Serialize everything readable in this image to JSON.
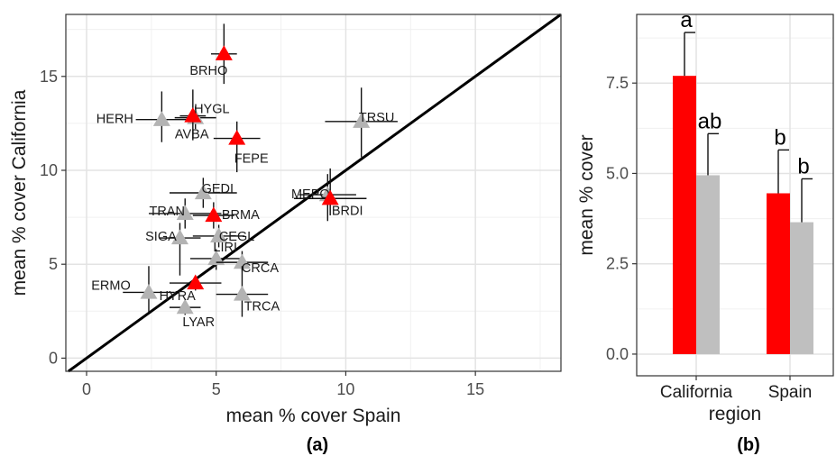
{
  "chart_data": [
    {
      "type": "scatter",
      "panel_label": "(a)",
      "xlabel": "mean % cover Spain",
      "ylabel": "mean % cover California",
      "xlim": [
        -0.8,
        18.3
      ],
      "ylim": [
        -0.7,
        18.3
      ],
      "x_ticks": [
        0,
        5,
        10,
        15
      ],
      "y_ticks": [
        0,
        5,
        10,
        15
      ],
      "grid": true,
      "reference_line": "y = x",
      "colors": {
        "red": "#ff0000",
        "grey": "#b3b3b3",
        "line": "#000000"
      },
      "points": [
        {
          "label": "BRHO",
          "x": 5.3,
          "y": 16.2,
          "xerr": 0.5,
          "yerr": [
            1.6,
            1.6
          ],
          "color": "red"
        },
        {
          "label": "HERH",
          "x": 2.9,
          "y": 12.7,
          "xerr": 1.0,
          "yerr": [
            1.2,
            1.5
          ],
          "color": "grey"
        },
        {
          "label": "HYGL",
          "x": 4.1,
          "y": 12.9,
          "xerr": 0.5,
          "yerr": [
            1.3,
            1.4
          ],
          "color": "red"
        },
        {
          "label": "AVBA",
          "x": 4.2,
          "y": 12.8,
          "xerr": 0.8,
          "yerr": [
            0.6,
            0.6
          ],
          "color": "grey"
        },
        {
          "label": "FEPE",
          "x": 5.8,
          "y": 11.7,
          "xerr": 0.9,
          "yerr": [
            1.8,
            0.9
          ],
          "color": "red"
        },
        {
          "label": "TRSU",
          "x": 10.6,
          "y": 12.6,
          "xerr": 1.4,
          "yerr": [
            1.9,
            1.8
          ],
          "color": "grey"
        },
        {
          "label": "MEPO",
          "x": 9.3,
          "y": 8.7,
          "xerr": 1.1,
          "yerr": [
            1.4,
            1.1
          ],
          "color": "grey"
        },
        {
          "label": "BRDI",
          "x": 9.4,
          "y": 8.5,
          "xerr": 1.4,
          "yerr": [
            0.9,
            1.6
          ],
          "color": "red"
        },
        {
          "label": "GEDI",
          "x": 4.5,
          "y": 8.8,
          "xerr": 1.3,
          "yerr": [
            0.8,
            0.8
          ],
          "color": "grey"
        },
        {
          "label": "TRAN",
          "x": 3.8,
          "y": 7.7,
          "xerr": 1.4,
          "yerr": [
            0.8,
            0.8
          ],
          "color": "grey"
        },
        {
          "label": "BRMA",
          "x": 4.9,
          "y": 7.6,
          "xerr": 0.8,
          "yerr": [
            0.7,
            0.7
          ],
          "color": "red"
        },
        {
          "label": "SIGA",
          "x": 3.6,
          "y": 6.4,
          "xerr": 0.8,
          "yerr": [
            2.0,
            0.8
          ],
          "color": "grey"
        },
        {
          "label": "CEGL",
          "x": 5.1,
          "y": 6.5,
          "xerr": 1.0,
          "yerr": [
            0.6,
            0.6
          ],
          "color": "grey"
        },
        {
          "label": "LIRI",
          "x": 5.0,
          "y": 5.3,
          "xerr": 1.0,
          "yerr": [
            0.6,
            0.5
          ],
          "color": "grey"
        },
        {
          "label": "CRCA",
          "x": 6.0,
          "y": 5.1,
          "xerr": 1.0,
          "yerr": [
            0.4,
            0.6
          ],
          "color": "grey"
        },
        {
          "label": "HYRA",
          "x": 4.2,
          "y": 4.0,
          "xerr": 1.0,
          "yerr": [
            0.4,
            0.4
          ],
          "color": "red"
        },
        {
          "label": "ERMO",
          "x": 2.4,
          "y": 3.5,
          "xerr": 1.0,
          "yerr": [
            1.1,
            1.4
          ],
          "color": "grey"
        },
        {
          "label": "TRCA",
          "x": 6.0,
          "y": 3.4,
          "xerr": 1.0,
          "yerr": [
            1.2,
            1.5
          ],
          "color": "grey"
        },
        {
          "label": "LYAR",
          "x": 3.8,
          "y": 2.7,
          "xerr": 0.6,
          "yerr": [
            0.4,
            0.4
          ],
          "color": "grey"
        }
      ]
    },
    {
      "type": "bar",
      "panel_label": "(b)",
      "xlabel": "region",
      "ylabel": "mean % cover",
      "categories": [
        "California",
        "Spain"
      ],
      "ylim": [
        -0.6,
        9.4
      ],
      "y_ticks": [
        0.0,
        2.5,
        5.0,
        7.5
      ],
      "y_tick_labels": [
        "0.0",
        "2.5",
        "5.0",
        "7.5"
      ],
      "grid": true,
      "series": [
        {
          "color": "#ff0000",
          "values": [
            7.7,
            4.45
          ],
          "errors": [
            1.2,
            1.2
          ],
          "letters": [
            "a",
            "b"
          ]
        },
        {
          "color": "#bfbfbf",
          "values": [
            4.95,
            3.65
          ],
          "errors": [
            1.15,
            1.2
          ],
          "letters": [
            "ab",
            "b"
          ]
        }
      ]
    }
  ]
}
